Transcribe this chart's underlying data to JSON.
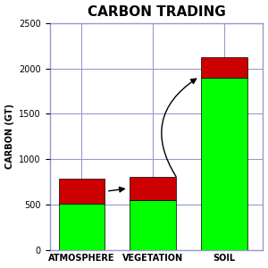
{
  "title": "CARBON TRADING",
  "ylabel": "CARBON (GT)",
  "categories": [
    "ATMOSPHERE",
    "VEGETATION",
    "SOIL"
  ],
  "green_values": [
    510,
    550,
    1900
  ],
  "red_values": [
    270,
    255,
    220
  ],
  "ylim": [
    0,
    2500
  ],
  "yticks": [
    0,
    500,
    1000,
    1500,
    2000,
    2500
  ],
  "bar_width": 0.65,
  "green_color": "#00FF00",
  "red_color": "#CC0000",
  "grid_color": "#9999CC",
  "title_fontsize": 11,
  "label_fontsize": 7,
  "tick_fontsize": 7,
  "arrow_color": "black",
  "background_color": "#FFFFFF",
  "xlim": [
    -0.45,
    2.55
  ],
  "figsize": [
    3.0,
    3.0
  ],
  "dpi": 100
}
